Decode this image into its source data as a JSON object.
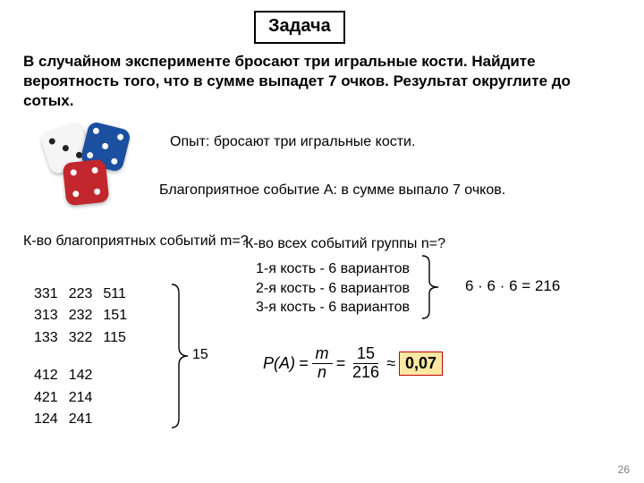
{
  "title": "Задача",
  "problem": "В случайном эксперименте бросают три игральные кости. Найдите вероятность того, что в сумме выпадет 7 очков. Результат округлите до сотых.",
  "experiment": "Опыт: бросают три игральные кости.",
  "event": "Благоприятное событие А: в сумме выпало 7 очков.",
  "fav_heading": "К-во благоприятных событий m=?",
  "all_heading": "К-во всех событий группы n=?",
  "combos_block1": [
    [
      "331",
      "223",
      "511"
    ],
    [
      "313",
      "232",
      "151"
    ],
    [
      "133",
      "322",
      "115"
    ]
  ],
  "combos_block2": [
    [
      "412",
      "142",
      ""
    ],
    [
      "421",
      "214",
      ""
    ],
    [
      "124",
      "241",
      ""
    ]
  ],
  "m_value": "15",
  "dice_variants": [
    "1-я кость - 6 вариантов",
    "2-я кость - 6 вариантов",
    "3-я кость - 6 вариантов"
  ],
  "n_formula": "6 · 6 · 6 = 216",
  "prob": {
    "lhs": "P(A)",
    "f1_num": "m",
    "f1_den": "n",
    "f2_num": "15",
    "f2_den": "216",
    "approx": "≈",
    "answer": "0,07"
  },
  "page_number": "26",
  "dice_colors": {
    "white": "#f5f5f5",
    "red": "#c1272d",
    "blue": "#1b4fa0",
    "pip_dark": "#222222",
    "pip_light": "#ffffff"
  }
}
